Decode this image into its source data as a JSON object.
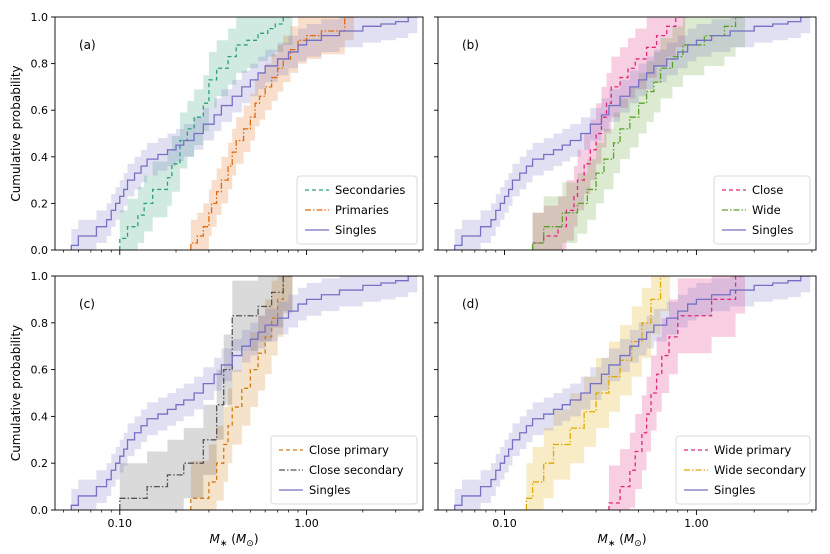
{
  "chart_data": [
    {
      "type": "line",
      "panel_label": "(a)",
      "xscale": "log",
      "xlim": [
        0.045,
        4.2
      ],
      "ylim": [
        0,
        1
      ],
      "xticks": [
        {
          "value": 0.1,
          "label": "0.10"
        },
        {
          "value": 1.0,
          "label": "1.00"
        }
      ],
      "yticks": [
        {
          "value": 0.0,
          "label": "0.0"
        },
        {
          "value": 0.2,
          "label": "0.2"
        },
        {
          "value": 0.4,
          "label": "0.4"
        },
        {
          "value": 0.6,
          "label": "0.6"
        },
        {
          "value": 0.8,
          "label": "0.8"
        },
        {
          "value": 1.0,
          "label": "1.0"
        }
      ],
      "ylabel": "Cumulative probability",
      "xlabel": "",
      "legend_position": "lower-right",
      "series": [
        {
          "name": "Secondaries",
          "color": "#2aa07a",
          "dash": "4,3",
          "band": 0.12,
          "x": [
            0.1,
            0.11,
            0.125,
            0.135,
            0.15,
            0.18,
            0.19,
            0.21,
            0.23,
            0.25,
            0.28,
            0.3,
            0.33,
            0.38,
            0.42,
            0.48,
            0.55,
            0.62,
            0.68,
            0.75
          ],
          "y": [
            0.05,
            0.1,
            0.15,
            0.2,
            0.26,
            0.31,
            0.37,
            0.47,
            0.52,
            0.57,
            0.63,
            0.73,
            0.78,
            0.83,
            0.88,
            0.9,
            0.93,
            0.95,
            0.97,
            1.0
          ]
        },
        {
          "name": "Primaries",
          "color": "#e06a10",
          "dash": "6,2,1.5,2",
          "band": 0.1,
          "x": [
            0.24,
            0.26,
            0.28,
            0.3,
            0.31,
            0.33,
            0.35,
            0.38,
            0.4,
            0.42,
            0.46,
            0.5,
            0.53,
            0.56,
            0.6,
            0.65,
            0.7,
            0.75,
            0.82,
            0.9,
            1.0,
            1.2,
            1.6
          ],
          "y": [
            0.03,
            0.06,
            0.1,
            0.16,
            0.2,
            0.25,
            0.3,
            0.36,
            0.42,
            0.47,
            0.52,
            0.57,
            0.63,
            0.66,
            0.7,
            0.74,
            0.78,
            0.82,
            0.86,
            0.9,
            0.92,
            0.94,
            1.0
          ]
        },
        {
          "name": "Singles",
          "color": "#7570c4",
          "dash": "",
          "band": 0.07,
          "x": [
            0.055,
            0.06,
            0.075,
            0.085,
            0.09,
            0.095,
            0.1,
            0.105,
            0.11,
            0.12,
            0.13,
            0.14,
            0.16,
            0.18,
            0.2,
            0.22,
            0.25,
            0.28,
            0.32,
            0.35,
            0.4,
            0.45,
            0.5,
            0.55,
            0.6,
            0.7,
            0.8,
            0.9,
            1.0,
            1.2,
            1.5,
            2.0,
            2.5,
            3.0,
            3.5
          ],
          "y": [
            0.02,
            0.06,
            0.1,
            0.13,
            0.17,
            0.2,
            0.23,
            0.26,
            0.3,
            0.33,
            0.36,
            0.39,
            0.41,
            0.43,
            0.45,
            0.47,
            0.5,
            0.54,
            0.58,
            0.62,
            0.66,
            0.7,
            0.73,
            0.76,
            0.79,
            0.82,
            0.85,
            0.88,
            0.9,
            0.92,
            0.94,
            0.96,
            0.97,
            0.98,
            1.0
          ]
        }
      ]
    },
    {
      "type": "line",
      "panel_label": "(b)",
      "xscale": "log",
      "xlim": [
        0.045,
        4.2
      ],
      "ylim": [
        0,
        1
      ],
      "xticks": [
        {
          "value": 0.1,
          "label": "0.10"
        },
        {
          "value": 1.0,
          "label": "1.00"
        }
      ],
      "yticks": [],
      "ylabel": "",
      "xlabel": "",
      "legend_position": "lower-right",
      "series": [
        {
          "name": "Close",
          "color": "#e0267a",
          "dash": "4,3",
          "band": 0.13,
          "x": [
            0.14,
            0.16,
            0.19,
            0.21,
            0.23,
            0.24,
            0.26,
            0.28,
            0.3,
            0.32,
            0.34,
            0.36,
            0.4,
            0.44,
            0.48,
            0.55,
            0.62,
            0.7,
            0.78
          ],
          "y": [
            0.03,
            0.06,
            0.1,
            0.17,
            0.23,
            0.3,
            0.37,
            0.43,
            0.5,
            0.57,
            0.63,
            0.7,
            0.74,
            0.78,
            0.82,
            0.87,
            0.92,
            0.96,
            1.0
          ]
        },
        {
          "name": "Wide",
          "color": "#5aa02c",
          "dash": "6,2,1.5,2",
          "band": 0.13,
          "x": [
            0.14,
            0.16,
            0.2,
            0.24,
            0.27,
            0.3,
            0.33,
            0.37,
            0.4,
            0.45,
            0.5,
            0.55,
            0.6,
            0.65,
            0.75,
            0.85,
            1.1,
            1.4,
            1.6
          ],
          "y": [
            0.03,
            0.1,
            0.16,
            0.2,
            0.26,
            0.33,
            0.39,
            0.46,
            0.52,
            0.57,
            0.63,
            0.68,
            0.72,
            0.78,
            0.83,
            0.88,
            0.92,
            0.96,
            1.0
          ]
        },
        {
          "name": "Singles",
          "color": "#7570c4",
          "dash": "",
          "band": 0.07,
          "x": [
            0.055,
            0.06,
            0.075,
            0.085,
            0.09,
            0.095,
            0.1,
            0.105,
            0.11,
            0.12,
            0.13,
            0.14,
            0.16,
            0.18,
            0.2,
            0.22,
            0.25,
            0.28,
            0.32,
            0.35,
            0.4,
            0.45,
            0.5,
            0.55,
            0.6,
            0.7,
            0.8,
            0.9,
            1.0,
            1.2,
            1.5,
            2.0,
            2.5,
            3.0,
            3.5
          ],
          "y": [
            0.02,
            0.06,
            0.1,
            0.13,
            0.17,
            0.2,
            0.23,
            0.26,
            0.3,
            0.33,
            0.36,
            0.39,
            0.41,
            0.43,
            0.45,
            0.47,
            0.5,
            0.54,
            0.58,
            0.62,
            0.66,
            0.7,
            0.73,
            0.76,
            0.79,
            0.82,
            0.85,
            0.88,
            0.9,
            0.92,
            0.94,
            0.96,
            0.97,
            0.98,
            1.0
          ]
        }
      ]
    },
    {
      "type": "line",
      "panel_label": "(c)",
      "xscale": "log",
      "xlim": [
        0.045,
        4.2
      ],
      "ylim": [
        0,
        1
      ],
      "xticks": [
        {
          "value": 0.1,
          "label": "0.10"
        },
        {
          "value": 1.0,
          "label": "1.00"
        }
      ],
      "yticks": [
        {
          "value": 0.0,
          "label": "0.0"
        },
        {
          "value": 0.2,
          "label": "0.2"
        },
        {
          "value": 0.4,
          "label": "0.4"
        },
        {
          "value": 0.6,
          "label": "0.6"
        },
        {
          "value": 0.8,
          "label": "0.8"
        },
        {
          "value": 1.0,
          "label": "1.0"
        }
      ],
      "ylabel": "Cumulative probability",
      "xlabel": "M* (M⊙)",
      "legend_position": "lower-right",
      "series": [
        {
          "name": "Close primary",
          "color": "#d07a10",
          "dash": "4,3",
          "band": 0.16,
          "x": [
            0.24,
            0.3,
            0.33,
            0.36,
            0.38,
            0.4,
            0.45,
            0.5,
            0.55,
            0.6,
            0.65,
            0.7,
            0.75
          ],
          "y": [
            0.05,
            0.12,
            0.2,
            0.28,
            0.36,
            0.44,
            0.52,
            0.6,
            0.67,
            0.74,
            0.82,
            0.9,
            1.0
          ]
        },
        {
          "name": "Close secondary",
          "color": "#555555",
          "dash": "6,2,1.5,2",
          "band": 0.15,
          "x": [
            0.1,
            0.14,
            0.18,
            0.22,
            0.28,
            0.33,
            0.36,
            0.4,
            0.55,
            0.65,
            0.75
          ],
          "y": [
            0.05,
            0.1,
            0.15,
            0.2,
            0.3,
            0.45,
            0.6,
            0.83,
            0.87,
            0.93,
            1.0
          ]
        },
        {
          "name": "Singles",
          "color": "#7570c4",
          "dash": "",
          "band": 0.07,
          "x": [
            0.055,
            0.06,
            0.075,
            0.085,
            0.09,
            0.095,
            0.1,
            0.105,
            0.11,
            0.12,
            0.13,
            0.14,
            0.16,
            0.18,
            0.2,
            0.22,
            0.25,
            0.28,
            0.32,
            0.35,
            0.4,
            0.45,
            0.5,
            0.55,
            0.6,
            0.7,
            0.8,
            0.9,
            1.0,
            1.2,
            1.5,
            2.0,
            2.5,
            3.0,
            3.5
          ],
          "y": [
            0.02,
            0.06,
            0.1,
            0.13,
            0.17,
            0.2,
            0.23,
            0.26,
            0.3,
            0.33,
            0.36,
            0.39,
            0.41,
            0.43,
            0.45,
            0.47,
            0.5,
            0.54,
            0.58,
            0.62,
            0.66,
            0.7,
            0.73,
            0.76,
            0.79,
            0.82,
            0.85,
            0.88,
            0.9,
            0.92,
            0.94,
            0.96,
            0.97,
            0.98,
            1.0
          ]
        }
      ]
    },
    {
      "type": "line",
      "panel_label": "(d)",
      "xscale": "log",
      "xlim": [
        0.045,
        4.2
      ],
      "ylim": [
        0,
        1
      ],
      "xticks": [
        {
          "value": 0.1,
          "label": "0.10"
        },
        {
          "value": 1.0,
          "label": "1.00"
        }
      ],
      "yticks": [],
      "ylabel": "",
      "xlabel": "M* (M⊙)",
      "legend_position": "lower-right",
      "series": [
        {
          "name": "Wide primary",
          "color": "#e0267a",
          "dash": "4,3",
          "band": 0.16,
          "x": [
            0.35,
            0.4,
            0.45,
            0.48,
            0.52,
            0.55,
            0.58,
            0.62,
            0.66,
            0.72,
            0.8,
            1.2,
            1.6
          ],
          "y": [
            0.03,
            0.1,
            0.17,
            0.25,
            0.33,
            0.41,
            0.5,
            0.58,
            0.66,
            0.74,
            0.83,
            0.9,
            1.0
          ]
        },
        {
          "name": "Wide secondary",
          "color": "#e0a800",
          "dash": "6,2,1.5,2",
          "band": 0.15,
          "x": [
            0.13,
            0.14,
            0.16,
            0.18,
            0.22,
            0.26,
            0.3,
            0.35,
            0.4,
            0.46,
            0.52,
            0.58,
            0.65
          ],
          "y": [
            0.05,
            0.12,
            0.2,
            0.28,
            0.35,
            0.42,
            0.5,
            0.57,
            0.64,
            0.72,
            0.8,
            0.9,
            1.0
          ]
        },
        {
          "name": "Singles",
          "color": "#7570c4",
          "dash": "",
          "band": 0.07,
          "x": [
            0.055,
            0.06,
            0.075,
            0.085,
            0.09,
            0.095,
            0.1,
            0.105,
            0.11,
            0.12,
            0.13,
            0.14,
            0.16,
            0.18,
            0.2,
            0.22,
            0.25,
            0.28,
            0.32,
            0.35,
            0.4,
            0.45,
            0.5,
            0.55,
            0.6,
            0.7,
            0.8,
            0.9,
            1.0,
            1.2,
            1.5,
            2.0,
            2.5,
            3.0,
            3.5
          ],
          "y": [
            0.02,
            0.06,
            0.1,
            0.13,
            0.17,
            0.2,
            0.23,
            0.26,
            0.3,
            0.33,
            0.36,
            0.39,
            0.41,
            0.43,
            0.45,
            0.47,
            0.5,
            0.54,
            0.58,
            0.62,
            0.66,
            0.7,
            0.73,
            0.76,
            0.79,
            0.82,
            0.85,
            0.88,
            0.9,
            0.92,
            0.94,
            0.96,
            0.97,
            0.98,
            1.0
          ]
        }
      ]
    }
  ]
}
